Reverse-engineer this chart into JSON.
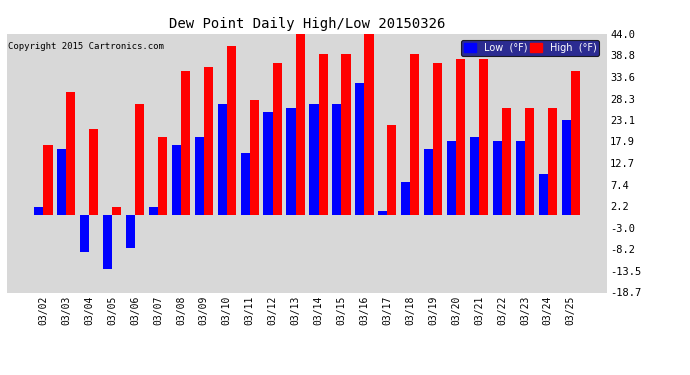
{
  "title": "Dew Point Daily High/Low 20150326",
  "copyright": "Copyright 2015 Cartronics.com",
  "dates": [
    "03/02",
    "03/03",
    "03/04",
    "03/05",
    "03/06",
    "03/07",
    "03/08",
    "03/09",
    "03/10",
    "03/11",
    "03/12",
    "03/13",
    "03/14",
    "03/15",
    "03/16",
    "03/17",
    "03/18",
    "03/19",
    "03/20",
    "03/21",
    "03/22",
    "03/23",
    "03/24",
    "03/25"
  ],
  "high_vals": [
    17.0,
    30.0,
    21.0,
    2.0,
    27.0,
    19.0,
    35.0,
    36.0,
    41.0,
    28.0,
    37.0,
    44.0,
    39.0,
    39.0,
    44.0,
    22.0,
    39.0,
    37.0,
    38.0,
    38.0,
    26.0,
    26.0,
    26.0,
    35.0
  ],
  "low_vals": [
    2.0,
    16.0,
    -9.0,
    -13.0,
    -8.0,
    2.0,
    17.0,
    19.0,
    27.0,
    15.0,
    25.0,
    26.0,
    27.0,
    27.0,
    32.0,
    1.0,
    8.0,
    16.0,
    18.0,
    19.0,
    18.0,
    18.0,
    10.0,
    23.0
  ],
  "high_color": "#ff0000",
  "low_color": "#0000ff",
  "bg_color": "#ffffff",
  "plot_bg": "#d8d8d8",
  "ylim": [
    -18.7,
    44.0
  ],
  "yticks": [
    -18.7,
    -13.5,
    -8.2,
    -3.0,
    2.2,
    7.4,
    12.7,
    17.9,
    23.1,
    28.3,
    33.6,
    38.8,
    44.0
  ],
  "ylabel_right": [
    "-18.7",
    "-13.5",
    "-8.2",
    "-3.0",
    "2.2",
    "7.4",
    "12.7",
    "17.9",
    "23.1",
    "28.3",
    "33.6",
    "38.8",
    "44.0"
  ],
  "bar_width": 0.4,
  "legend_low_label": "Low  (°F)",
  "legend_high_label": "High  (°F)"
}
